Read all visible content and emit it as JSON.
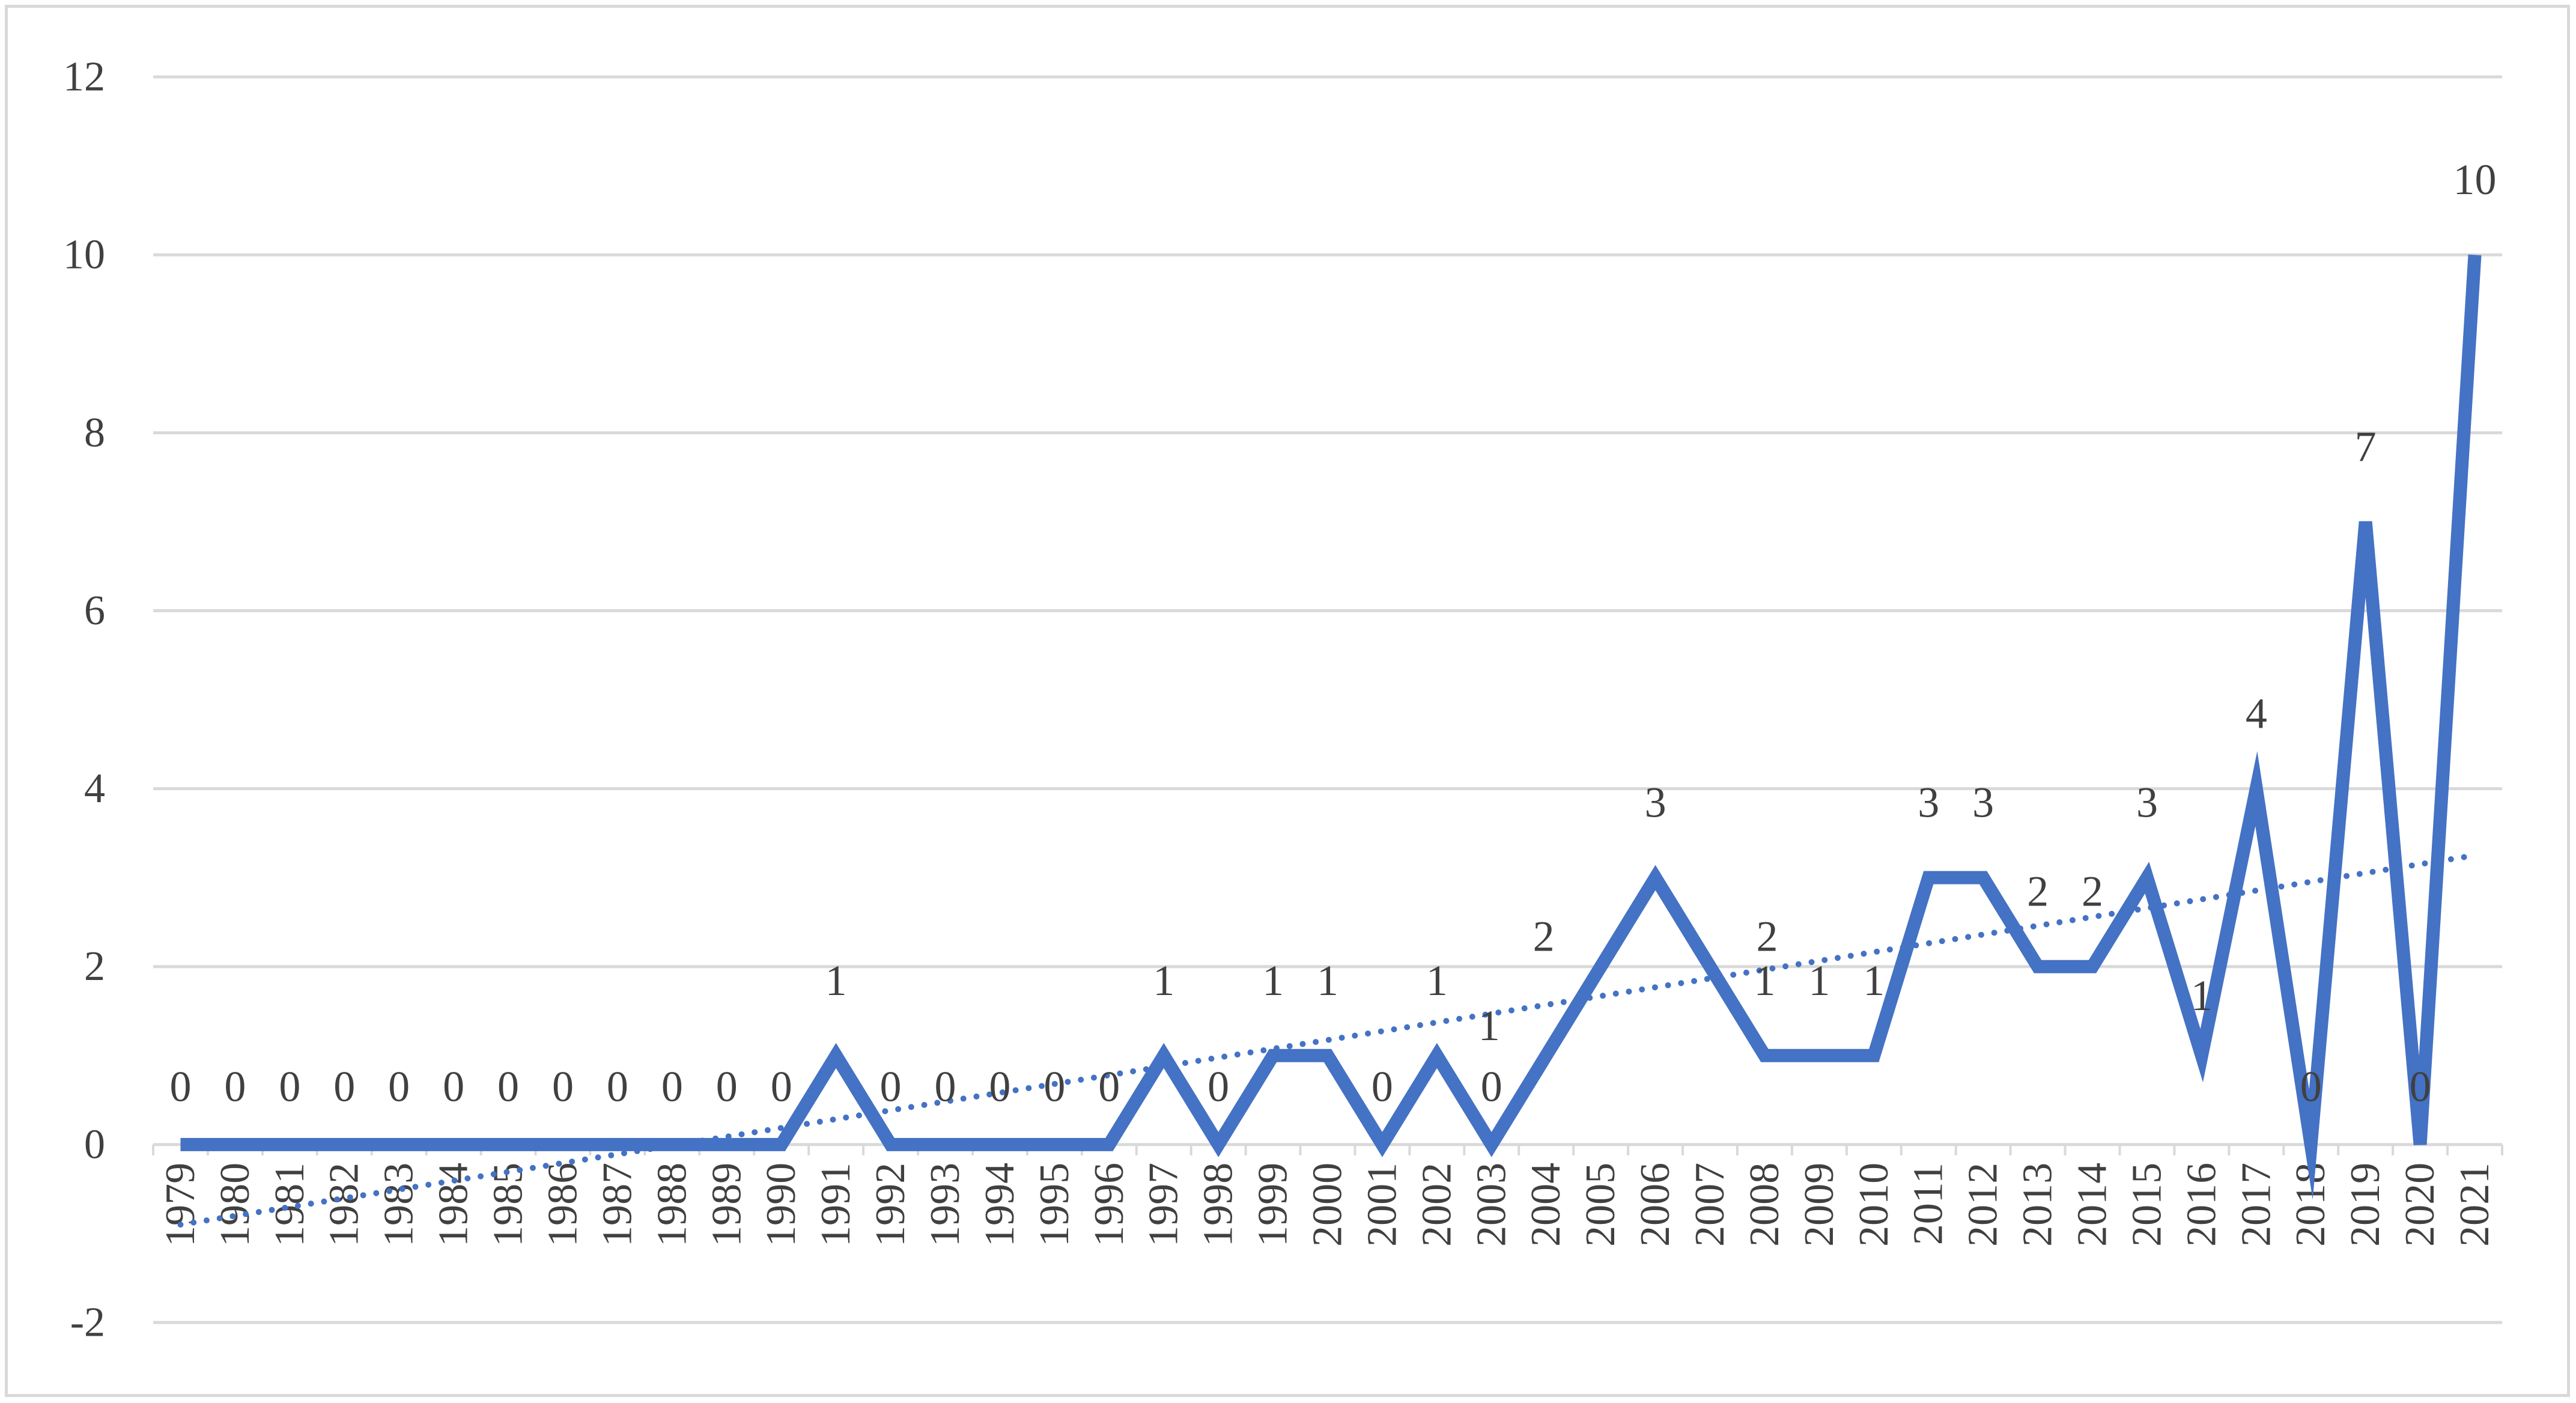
{
  "chart_data": {
    "type": "line",
    "title": "",
    "xlabel": "",
    "ylabel": "",
    "x": [
      "1979",
      "1980",
      "1981",
      "1982",
      "1983",
      "1984",
      "1985",
      "1986",
      "1987",
      "1988",
      "1989",
      "1990",
      "1991",
      "1992",
      "1993",
      "1994",
      "1995",
      "1996",
      "1997",
      "1998",
      "1999",
      "2000",
      "2001",
      "2002",
      "2003",
      "2004",
      "2005",
      "2006",
      "2007",
      "2008",
      "2009",
      "2010",
      "2011",
      "2012",
      "2013",
      "2014",
      "2015",
      "2016",
      "2017",
      "2018",
      "2019",
      "2020",
      "2021"
    ],
    "series": [
      {
        "values": [
          0,
          0,
          0,
          0,
          0,
          0,
          0,
          0,
          0,
          0,
          0,
          0,
          1,
          0,
          0,
          0,
          0,
          0,
          1,
          0,
          1,
          1,
          0,
          1,
          0,
          1,
          2,
          3,
          2,
          1,
          1,
          1,
          3,
          3,
          2,
          2,
          3,
          1,
          4,
          0,
          7,
          0,
          10
        ],
        "data_labels": [
          "0",
          "0",
          "0",
          "0",
          "0",
          "0",
          "0",
          "0",
          "0",
          "0",
          "0",
          "0",
          "1",
          "0",
          "0",
          "0",
          "0",
          "0",
          "1",
          "0",
          "1",
          "1",
          "0",
          "1",
          "0",
          "1",
          "2",
          "3",
          "2",
          "1",
          "1",
          "1",
          "3",
          "3",
          "2",
          "2",
          "3",
          "1",
          "4",
          "0",
          "7",
          "0",
          "10"
        ]
      }
    ],
    "trendline": {
      "type": "linear",
      "style": "dotted",
      "from": -0.9,
      "to": 3.25
    },
    "yticks": [
      "-2",
      "0",
      "2",
      "4",
      "6",
      "8",
      "10",
      "12"
    ],
    "ylim": [
      -2,
      12
    ],
    "grid": "horizontal",
    "legend": "none",
    "colors": {
      "series": "#4472c4",
      "grid": "#d9d9d9",
      "text": "#404040"
    }
  }
}
